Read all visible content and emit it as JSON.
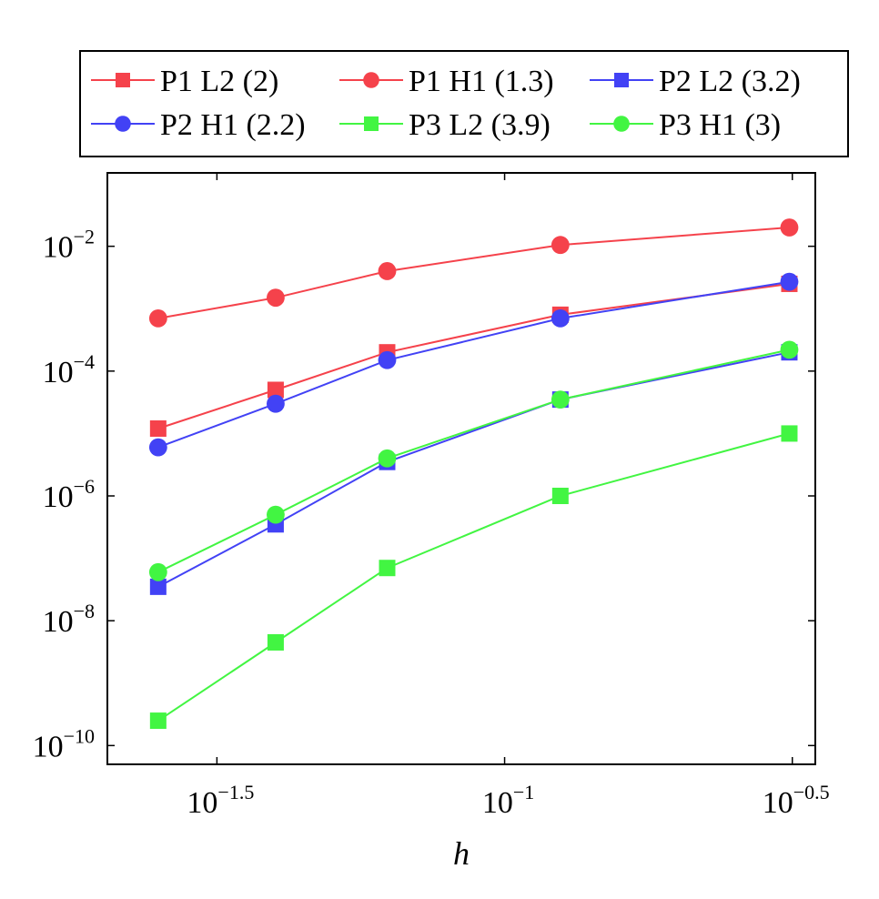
{
  "chart_data": {
    "type": "line",
    "xlabel": "h",
    "ylabel": "",
    "x_scale": "log",
    "y_scale": "log",
    "xlim": [
      0.0204,
      0.3467
    ],
    "ylim": [
      5e-11,
      0.15
    ],
    "grid": false,
    "legend_position": "top",
    "x_ticks": [
      {
        "value": 0.031623,
        "base": "10",
        "exp": "−1.5"
      },
      {
        "value": 0.1,
        "base": "10",
        "exp": "−1"
      },
      {
        "value": 0.316228,
        "base": "10",
        "exp": "−0.5"
      }
    ],
    "y_ticks": [
      {
        "value": 0.01,
        "base": "10",
        "exp": "−2"
      },
      {
        "value": 0.0001,
        "base": "10",
        "exp": "−4"
      },
      {
        "value": 1e-06,
        "base": "10",
        "exp": "−6"
      },
      {
        "value": 1e-08,
        "base": "10",
        "exp": "−8"
      },
      {
        "value": 1e-10,
        "base": "10",
        "exp": "−10"
      }
    ],
    "series": [
      {
        "name": "P1 L2 (2)",
        "color": "#f5424b",
        "marker": "square",
        "x": [
          0.025,
          0.04,
          0.0625,
          0.125,
          0.3125
        ],
        "y": [
          1.2e-05,
          5e-05,
          0.0002,
          0.0008,
          0.0025
        ]
      },
      {
        "name": "P1 H1 (1.3)",
        "color": "#f5424b",
        "marker": "circle",
        "x": [
          0.025,
          0.04,
          0.0625,
          0.125,
          0.3125
        ],
        "y": [
          0.0007,
          0.0015,
          0.004,
          0.0105,
          0.02
        ]
      },
      {
        "name": "P2 L2 (3.2)",
        "color": "#4242f5",
        "marker": "square",
        "x": [
          0.025,
          0.04,
          0.0625,
          0.125,
          0.3125
        ],
        "y": [
          3.5e-08,
          3.5e-07,
          3.5e-06,
          3.5e-05,
          0.0002
        ]
      },
      {
        "name": "P2 H1 (2.2)",
        "color": "#4242f5",
        "marker": "circle",
        "x": [
          0.025,
          0.04,
          0.0625,
          0.125,
          0.3125
        ],
        "y": [
          6e-06,
          3e-05,
          0.00015,
          0.0007,
          0.0027
        ]
      },
      {
        "name": "P3 L2 (3.9)",
        "color": "#42f542",
        "marker": "square",
        "x": [
          0.025,
          0.04,
          0.0625,
          0.125,
          0.3125
        ],
        "y": [
          2.5e-10,
          4.5e-09,
          7e-08,
          1e-06,
          1e-05
        ]
      },
      {
        "name": "P3 H1 (3)",
        "color": "#42f542",
        "marker": "circle",
        "x": [
          0.025,
          0.04,
          0.0625,
          0.125,
          0.3125
        ],
        "y": [
          6e-08,
          5e-07,
          4e-06,
          3.5e-05,
          0.00022
        ]
      }
    ]
  }
}
